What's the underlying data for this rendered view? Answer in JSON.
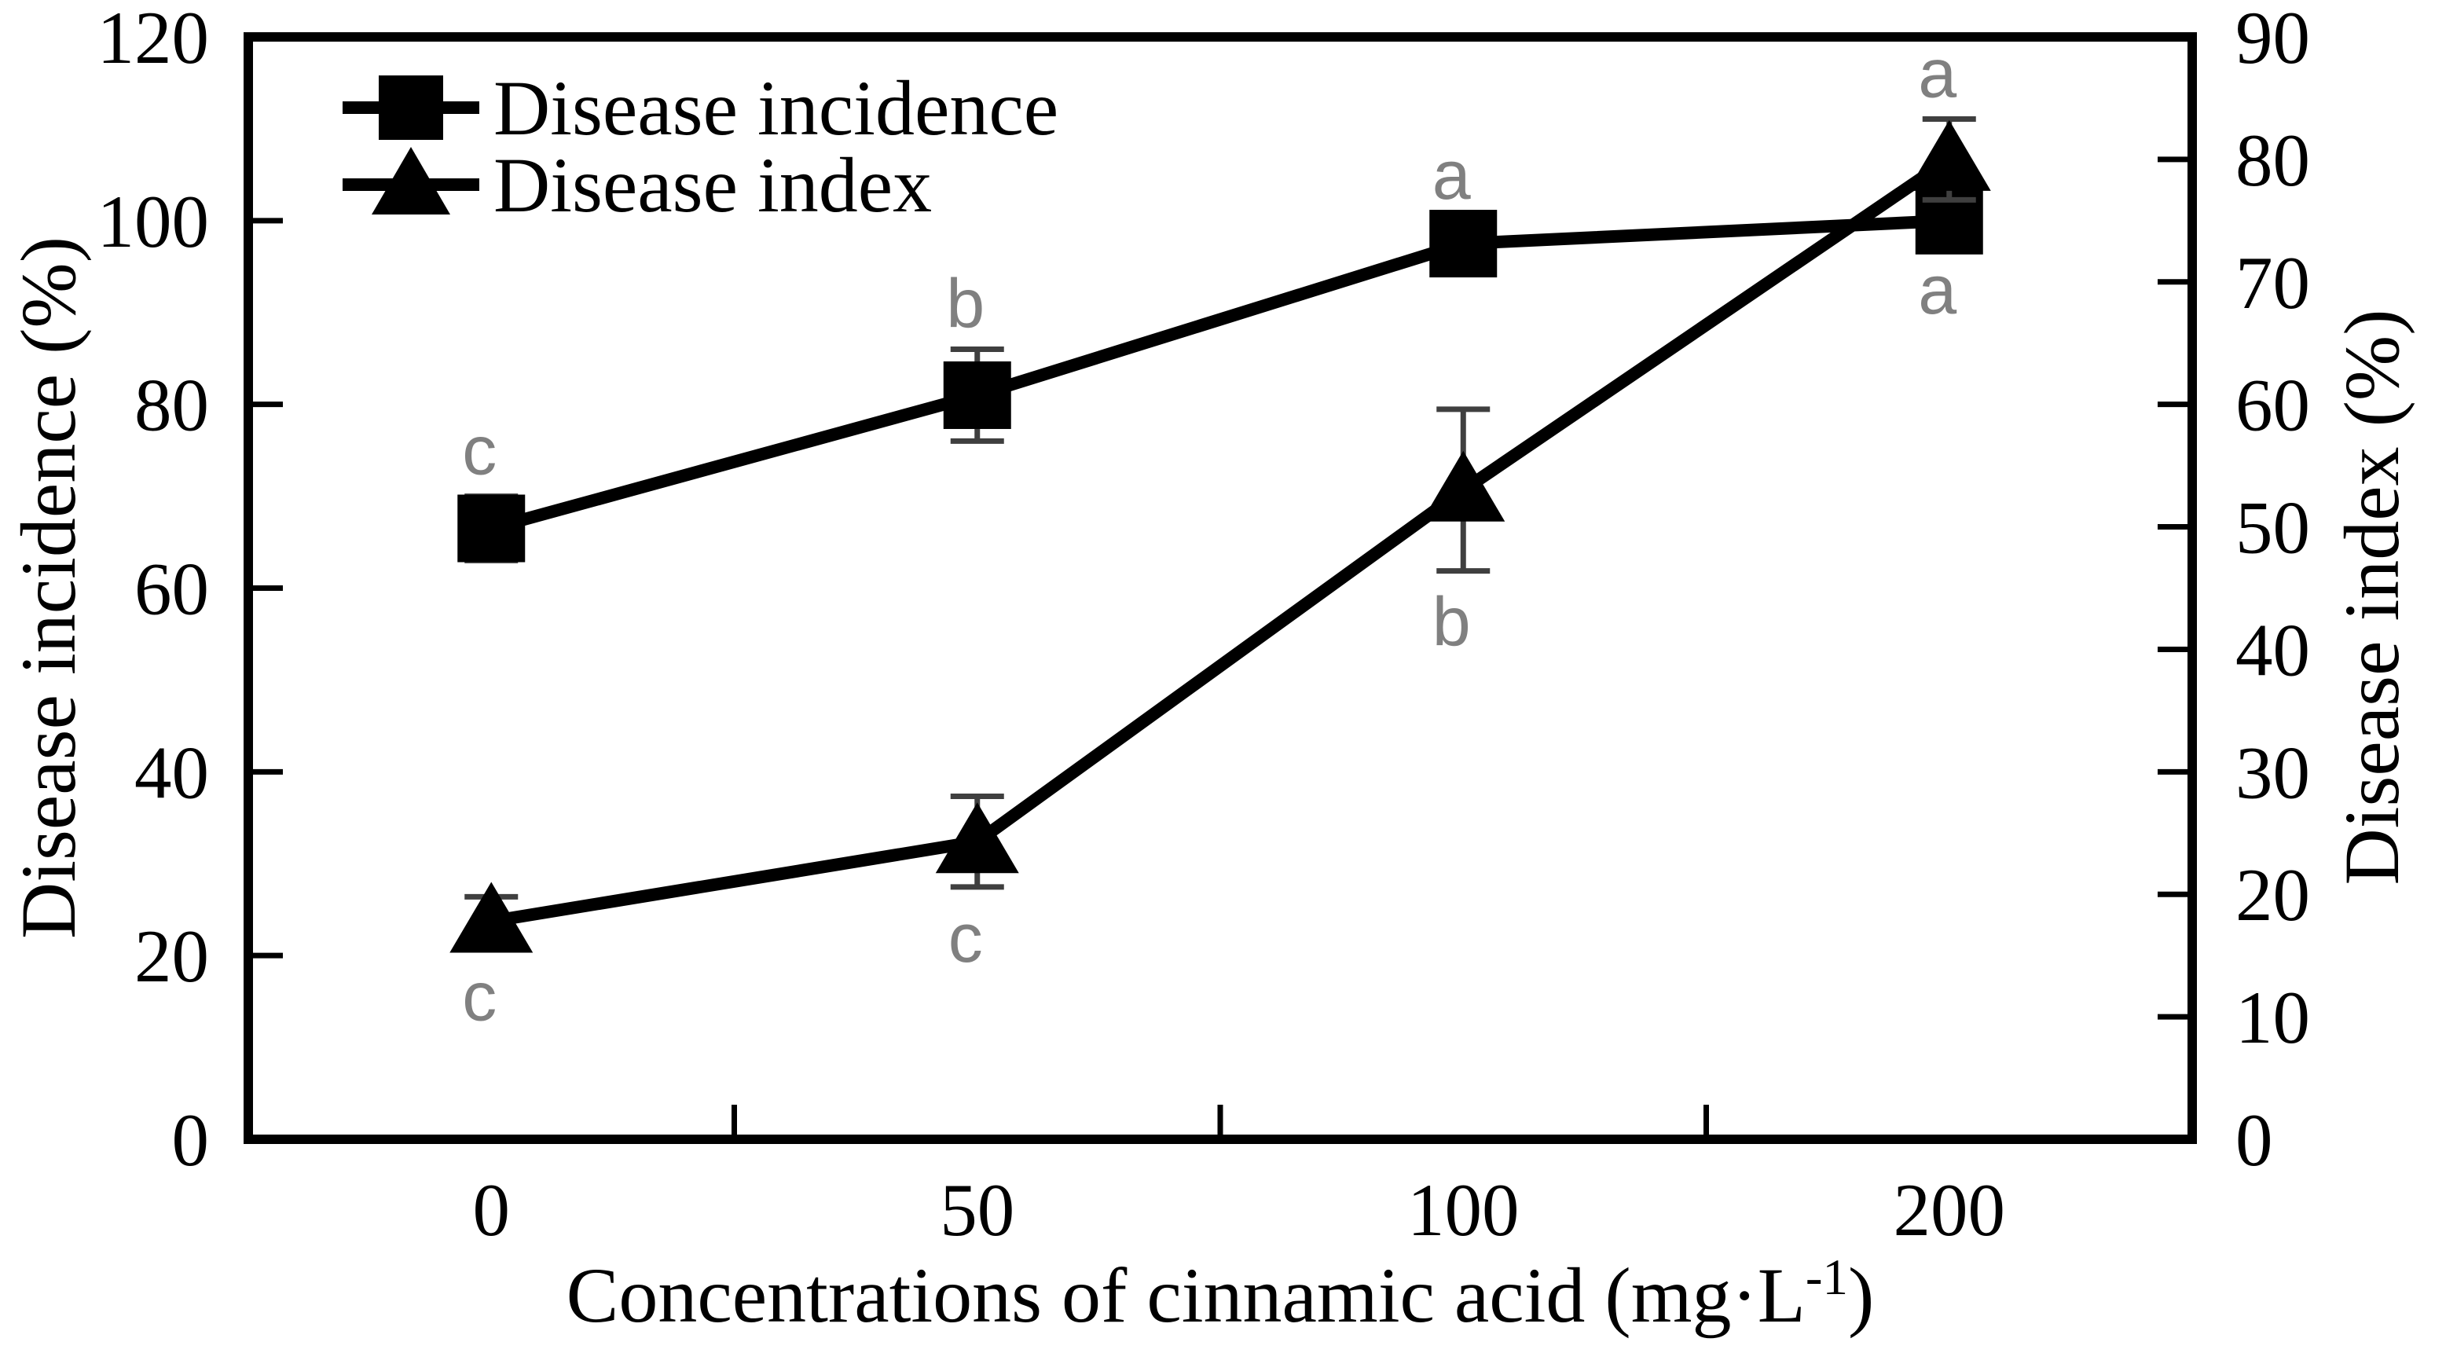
{
  "chart_data": {
    "type": "line",
    "title": "",
    "x_axis": {
      "label_pre": "Concentrations of cinnamic acid (mg·L",
      "label_sup": "-1",
      "label_post": ")",
      "categories": [
        "0",
        "50",
        "100",
        "200"
      ]
    },
    "y_left": {
      "label": "Disease incidence (%)",
      "min": 0,
      "max": 120,
      "tick_step": 20,
      "tick_labels": [
        "0",
        "20",
        "40",
        "60",
        "80",
        "100",
        "120"
      ]
    },
    "y_right": {
      "label": "Disease index (%)",
      "min": 0,
      "max": 90,
      "tick_step": 10,
      "tick_labels": [
        "0",
        "10",
        "20",
        "30",
        "40",
        "50",
        "60",
        "70",
        "80",
        "90"
      ]
    },
    "legend": {
      "position": "top-left"
    },
    "series": [
      {
        "name": "Disease incidence",
        "axis": "left",
        "marker": "square",
        "values": [
          66.5,
          81,
          97.5,
          100
        ],
        "errors": [
          3.5,
          5,
          2.5,
          2
        ],
        "letters": [
          {
            "text": "c",
            "pos": "above"
          },
          {
            "text": "b",
            "pos": "above"
          },
          {
            "text": "a",
            "pos": "above"
          },
          {
            "text": "a",
            "pos": "below"
          }
        ]
      },
      {
        "name": "Disease index",
        "axis": "right",
        "marker": "triangle",
        "values": [
          17.8,
          24.3,
          53,
          80
        ],
        "errors": [
          2,
          3.7,
          6.6,
          3.3
        ],
        "letters": [
          {
            "text": "c",
            "pos": "below"
          },
          {
            "text": "c",
            "pos": "below"
          },
          {
            "text": "b",
            "pos": "below"
          },
          {
            "text": "a",
            "pos": "above"
          }
        ]
      }
    ],
    "colors": {
      "series": "#000000",
      "axis": "#000000",
      "error_bar": "#3f3f3f",
      "sig_letter": "#808080",
      "background": "#ffffff"
    },
    "grid": "off",
    "xlim_categories": 4,
    "ylim_left": [
      0,
      120
    ],
    "ylim_right": [
      0,
      90
    ]
  }
}
